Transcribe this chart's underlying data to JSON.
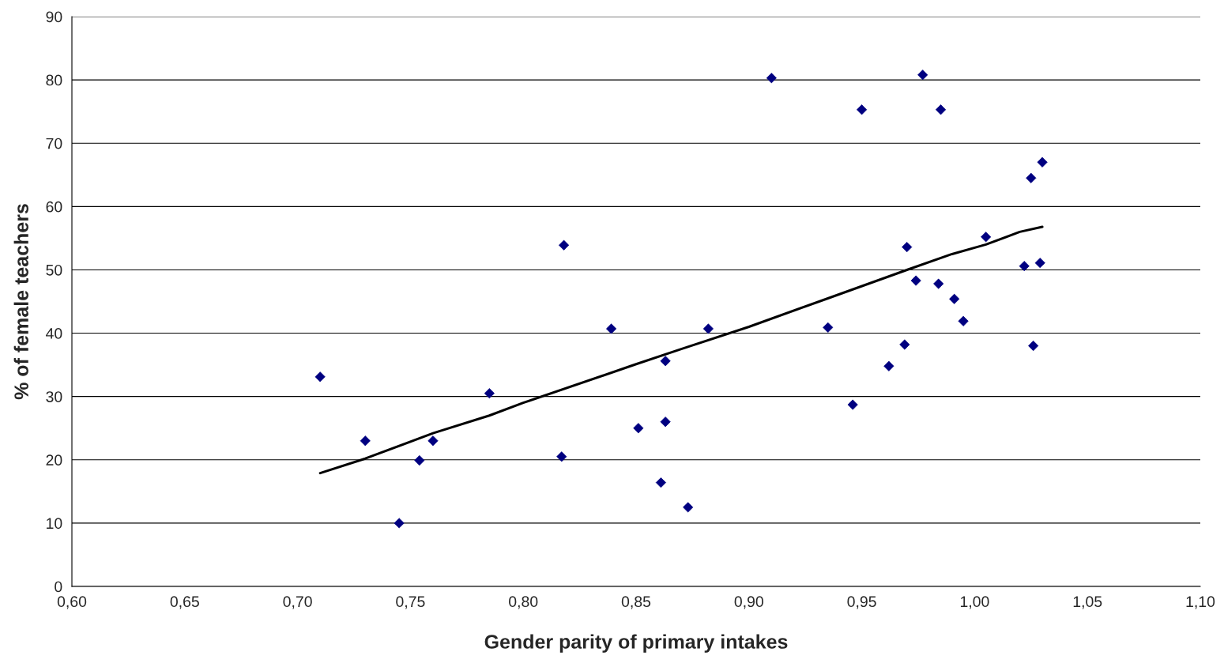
{
  "chart_data": {
    "type": "scatter",
    "xlabel": "Gender parity of primary intakes",
    "ylabel": "% of female teachers",
    "xlim": [
      0.6,
      1.1
    ],
    "ylim": [
      0,
      90
    ],
    "xticks": [
      {
        "value": 0.6,
        "label": "0,60"
      },
      {
        "value": 0.65,
        "label": "0,65"
      },
      {
        "value": 0.7,
        "label": "0,70"
      },
      {
        "value": 0.75,
        "label": "0,75"
      },
      {
        "value": 0.8,
        "label": "0,80"
      },
      {
        "value": 0.85,
        "label": "0,85"
      },
      {
        "value": 0.9,
        "label": "0,90"
      },
      {
        "value": 0.95,
        "label": "0,95"
      },
      {
        "value": 1.0,
        "label": "1,00"
      },
      {
        "value": 1.05,
        "label": "1,05"
      },
      {
        "value": 1.1,
        "label": "1,10"
      }
    ],
    "yticks": [
      0,
      10,
      20,
      30,
      40,
      50,
      60,
      70,
      80,
      90
    ],
    "grid": "y",
    "legend": false,
    "series": [
      {
        "color": "#000080",
        "marker": "diamond",
        "x": [
          0.71,
          0.73,
          0.745,
          0.754,
          0.76,
          0.785,
          0.817,
          0.818,
          0.839,
          0.851,
          0.861,
          0.863,
          0.863,
          0.873,
          0.882,
          0.91,
          0.935,
          0.946,
          0.95,
          0.962,
          0.969,
          0.97,
          0.974,
          0.977,
          0.984,
          0.985,
          0.991,
          0.995,
          1.005,
          1.022,
          1.025,
          1.026,
          1.029,
          1.03
        ],
        "values": [
          33.1,
          23.0,
          10.0,
          19.9,
          23.0,
          30.5,
          20.5,
          53.9,
          40.7,
          25.0,
          16.4,
          26.0,
          35.6,
          12.5,
          40.7,
          80.3,
          40.9,
          28.7,
          75.3,
          34.8,
          38.2,
          53.6,
          48.3,
          80.8,
          47.8,
          75.3,
          45.4,
          41.9,
          55.2,
          50.6,
          64.5,
          38.0,
          51.1,
          67.0
        ]
      },
      {
        "type": "line",
        "color": "#000000",
        "marker": "none",
        "line_style": "solid",
        "x": [
          0.71,
          0.73,
          0.76,
          0.785,
          0.8,
          0.85,
          0.87,
          0.9,
          0.935,
          0.97,
          0.99,
          1.005,
          1.02,
          1.03
        ],
        "values": [
          17.9,
          20.2,
          24.2,
          27.0,
          29.0,
          35.1,
          37.5,
          41.0,
          45.5,
          50.0,
          52.5,
          54.0,
          56.0,
          56.8
        ]
      }
    ]
  }
}
